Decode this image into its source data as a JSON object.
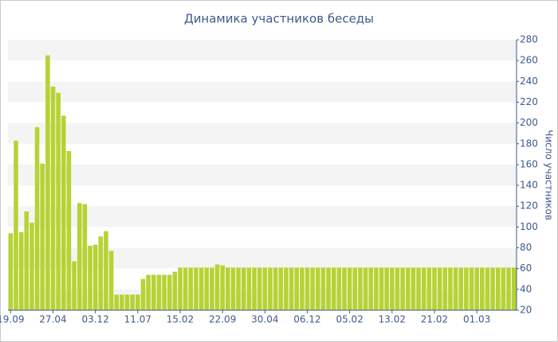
{
  "chart_data": {
    "type": "bar",
    "title": "Динамика участников беседы",
    "y_axis_label": "Число участников",
    "categories": [
      "19.09",
      null,
      null,
      null,
      null,
      null,
      null,
      null,
      "27.04",
      null,
      null,
      null,
      null,
      null,
      null,
      null,
      "03.12",
      null,
      null,
      null,
      null,
      null,
      null,
      null,
      "11.07",
      null,
      null,
      null,
      null,
      null,
      null,
      null,
      "15.02",
      null,
      null,
      null,
      null,
      null,
      null,
      null,
      "22.09",
      null,
      null,
      null,
      null,
      null,
      null,
      null,
      "30.04",
      null,
      null,
      null,
      null,
      null,
      null,
      null,
      "06.12",
      null,
      null,
      null,
      null,
      null,
      null,
      null,
      "05.02",
      null,
      null,
      null,
      null,
      null,
      null,
      null,
      "13.02",
      null,
      null,
      null,
      null,
      null,
      null,
      null,
      "21.02",
      null,
      null,
      null,
      null,
      null,
      null,
      null,
      "01.03",
      null,
      null,
      null,
      null,
      null,
      null,
      null
    ],
    "values": [
      94,
      183,
      95,
      115,
      104,
      196,
      161,
      265,
      235,
      229,
      207,
      173,
      67,
      123,
      122,
      82,
      83,
      91,
      96,
      77,
      35,
      35,
      35,
      35,
      35,
      50,
      54,
      54,
      54,
      54,
      54,
      57,
      61,
      61,
      61,
      61,
      61,
      61,
      61,
      64,
      63,
      61,
      61,
      61,
      61,
      61,
      61,
      61,
      61,
      61,
      61,
      61,
      61,
      61,
      61,
      61,
      61,
      61,
      61,
      61,
      61,
      61,
      61,
      61,
      61,
      61,
      61,
      61,
      61,
      61,
      61,
      61,
      61,
      61,
      61,
      61,
      61,
      61,
      61,
      61,
      61,
      61,
      61,
      61,
      61,
      61,
      61,
      61,
      61,
      61,
      61,
      61,
      61,
      61,
      61,
      61
    ],
    "color": "#b5d334",
    "ylim": [
      20,
      280
    ],
    "yticks": [
      20,
      40,
      60,
      80,
      100,
      120,
      140,
      160,
      180,
      200,
      220,
      240,
      260,
      280
    ],
    "grid": true,
    "y_axis_side": "right"
  }
}
